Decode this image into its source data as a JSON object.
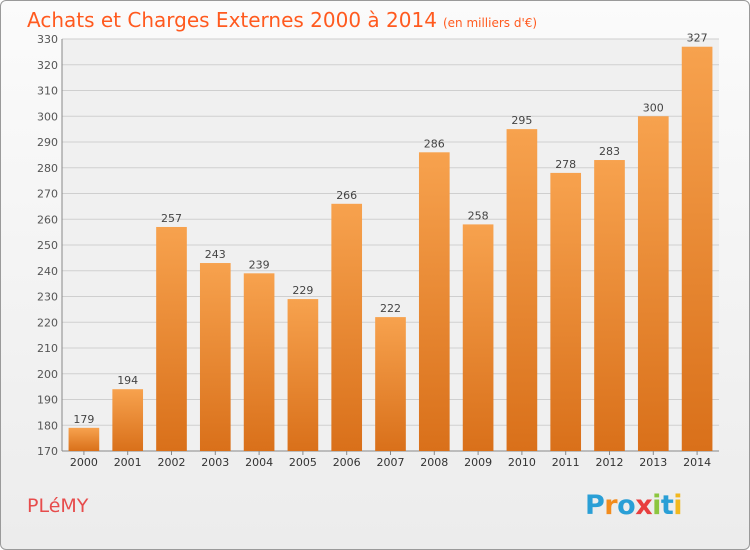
{
  "header": {
    "title": "Achats et Charges Externes 2000 à 2014",
    "unit": "(en milliers d'€)"
  },
  "footer": {
    "commune": "PLéMY",
    "logo_text": "Proxiti",
    "logo_letters": [
      "P",
      "r",
      "o",
      "x",
      "i",
      "t",
      "i"
    ]
  },
  "colors": {
    "title": "#ff5a1f",
    "commune": "#e74c4c",
    "bar_top": "#f7a24e",
    "bar_bottom": "#d9701a"
  },
  "chart_data": {
    "type": "bar",
    "title": "Achats et Charges Externes 2000 à 2014",
    "subtitle": "(en milliers d'€)",
    "xlabel": "",
    "ylabel": "",
    "categories": [
      "2000",
      "2001",
      "2002",
      "2003",
      "2004",
      "2005",
      "2006",
      "2007",
      "2008",
      "2009",
      "2010",
      "2011",
      "2012",
      "2013",
      "2014"
    ],
    "values": [
      179,
      194,
      257,
      243,
      239,
      229,
      266,
      222,
      286,
      258,
      295,
      278,
      283,
      300,
      327
    ],
    "ylim": [
      170,
      330
    ],
    "yticks": [
      170,
      180,
      190,
      200,
      210,
      220,
      230,
      240,
      250,
      260,
      270,
      280,
      290,
      300,
      310,
      320,
      330
    ],
    "grid": true,
    "legend": "none"
  }
}
